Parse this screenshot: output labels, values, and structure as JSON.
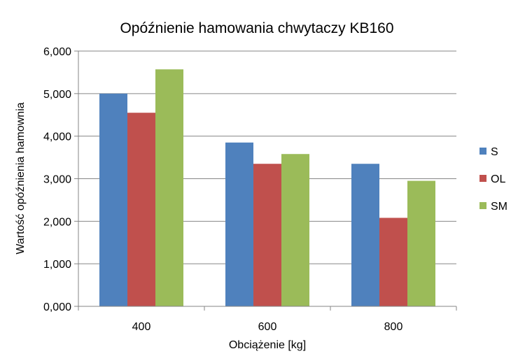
{
  "chart_data": {
    "type": "bar",
    "title": "Opóźnienie hamowania chwytaczy KB160",
    "xlabel": "Obciążenie [kg]",
    "ylabel": "Wartość opóźnienia hamownia",
    "categories": [
      "400",
      "600",
      "800"
    ],
    "series": [
      {
        "name": "S",
        "color": "#4f81bd",
        "values": [
          5.0,
          3.85,
          3.35
        ]
      },
      {
        "name": "OL",
        "color": "#c0504d",
        "values": [
          4.55,
          3.35,
          2.08
        ]
      },
      {
        "name": "SM",
        "color": "#9bbb59",
        "values": [
          5.57,
          3.58,
          2.95
        ]
      }
    ],
    "ylim": [
      0,
      6
    ],
    "yticks": [
      "0,000",
      "1,000",
      "2,000",
      "3,000",
      "4,000",
      "5,000",
      "6,000"
    ],
    "grid": true,
    "legend_position": "right"
  }
}
